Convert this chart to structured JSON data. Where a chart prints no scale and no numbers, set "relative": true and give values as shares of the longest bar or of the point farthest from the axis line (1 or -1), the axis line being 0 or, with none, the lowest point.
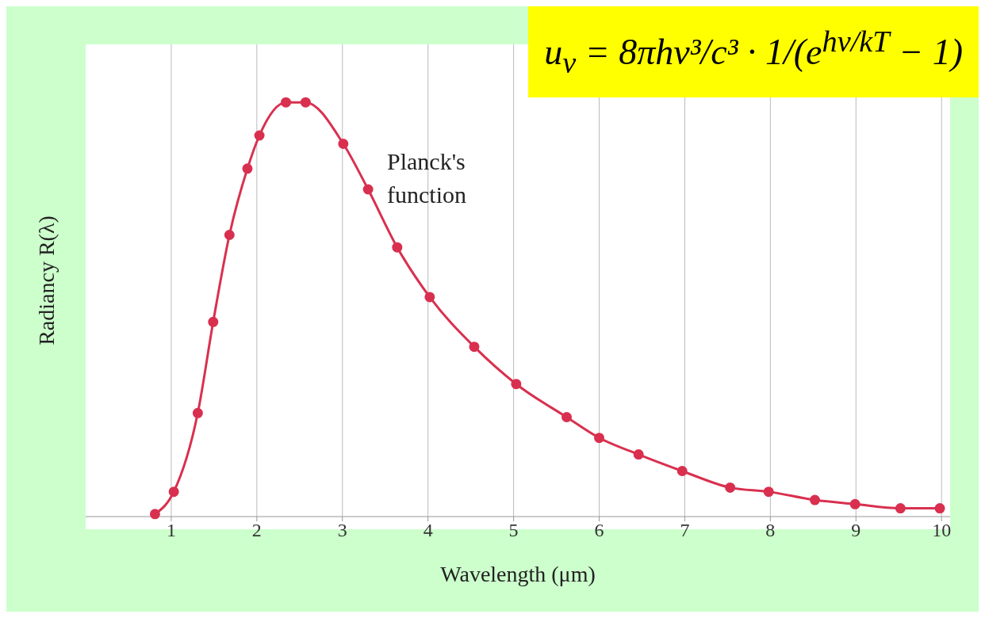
{
  "chart_data": {
    "type": "line",
    "xlabel": "Wavelength (μm)",
    "ylabel": "Radiancy R(λ)",
    "relative": true,
    "x": [
      0.81,
      1.03,
      1.31,
      1.49,
      1.68,
      1.89,
      2.03,
      2.34,
      2.57,
      3.01,
      3.3,
      3.64,
      4.02,
      4.54,
      5.03,
      5.62,
      6.0,
      6.46,
      6.97,
      7.53,
      7.98,
      8.52,
      8.99,
      9.52,
      9.98
    ],
    "values": [
      0.006,
      0.06,
      0.25,
      0.47,
      0.68,
      0.84,
      0.92,
      1,
      1,
      0.9,
      0.79,
      0.65,
      0.53,
      0.41,
      0.32,
      0.24,
      0.19,
      0.15,
      0.11,
      0.07,
      0.06,
      0.04,
      0.03,
      0.02,
      0.02
    ],
    "color": "#d9304f",
    "marker": "circle",
    "line_style": "solid",
    "xlim": [
      0,
      10.1
    ],
    "xticks": [
      1,
      2,
      3,
      4,
      5,
      6,
      7,
      8,
      9,
      10
    ],
    "grid": "x",
    "annotations": [
      "Planck's function",
      "u$_{ν}$ = 8πhν³/c³ · 1/(e$^{hν/kT}$ − 1)"
    ]
  }
}
